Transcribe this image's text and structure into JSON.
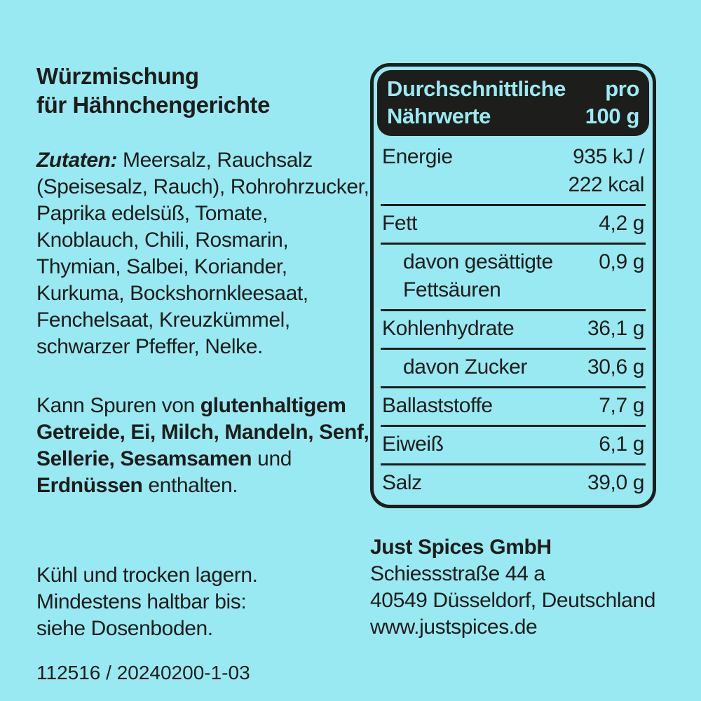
{
  "colors": {
    "background": "#99E9F2",
    "ink": "#1D1D1B",
    "header_bg": "#1D1D1B",
    "header_text": "#9BEAF3"
  },
  "product": {
    "title_line1": "Würzmischung",
    "title_line2": "für Hähnchengerichte"
  },
  "ingredients": {
    "label": "Zutaten:",
    "text": " Meersalz, Rauchsalz (Speisesalz, Rauch), Rohrohrzucker, Paprika edelsüß, Tomate, Knoblauch, Chili, Rosmarin, Thymian, Salbei, Koriander, Kurkuma, Bockshornkleesaat, Fenchelsaat, Kreuzkümmel, schwarzer Pfeffer, Nelke."
  },
  "traces": {
    "lines": [
      {
        "pre": "Kann Spuren von ",
        "bold": "glutenhaltigem",
        "post": ""
      },
      {
        "pre": "",
        "bold": "Getreide, Ei, Milch, Mandeln, Senf,",
        "post": ""
      },
      {
        "pre": "",
        "bold": "Sellerie, Sesamsamen",
        "post": " und"
      },
      {
        "pre": "",
        "bold": "Erdnüssen",
        "post": " enthalten."
      }
    ]
  },
  "storage": {
    "lines": [
      "Kühl und trocken lagern.",
      "Mindestens haltbar bis:",
      "siehe Dosenboden."
    ]
  },
  "batch_code": "112516 / 20240200-1-03",
  "nutrition": {
    "header": {
      "left_line1": "Durchschnittliche",
      "left_line2": "Nährwerte",
      "right_line1": "pro",
      "right_line2": "100 g"
    },
    "rows": [
      {
        "label": "Energie",
        "value": "935 kJ /",
        "value2": "222 kcal",
        "indent": false
      },
      {
        "label": "Fett",
        "value": "4,2 g",
        "indent": false
      },
      {
        "label": "davon gesättigte Fettsäuren",
        "value": "0,9 g",
        "indent": true
      },
      {
        "label": "Kohlenhydrate",
        "value": "36,1 g",
        "indent": false
      },
      {
        "label": "davon Zucker",
        "value": "30,6 g",
        "indent": true
      },
      {
        "label": "Ballaststoffe",
        "value": "7,7 g",
        "indent": false
      },
      {
        "label": "Eiweiß",
        "value": "6,1 g",
        "indent": false
      },
      {
        "label": "Salz",
        "value": "39,0 g",
        "indent": false
      }
    ]
  },
  "company": {
    "name": "Just Spices GmbH",
    "street": "Schiessstraße 44 a",
    "city": "40549 Düsseldorf, Deutschland",
    "website": "www.justspices.de"
  }
}
